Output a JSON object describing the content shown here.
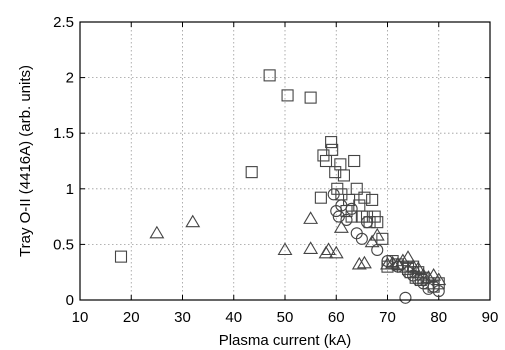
{
  "chart_data": {
    "type": "scatter",
    "title": "",
    "xlabel": "Plasma current (kA)",
    "ylabel": "Tray O-II (4416A) (arb. units)",
    "xlim": [
      10,
      90
    ],
    "ylim": [
      0,
      2.5
    ],
    "xticks": [
      "10",
      "20",
      "30",
      "40",
      "50",
      "60",
      "70",
      "80",
      "90"
    ],
    "yticks": [
      "0",
      "0.5",
      "1",
      "1.5",
      "2",
      "2.5"
    ],
    "grid": true,
    "legend": "none",
    "series": [
      {
        "marker": "square",
        "points": [
          [
            18,
            0.39
          ],
          [
            43.5,
            1.15
          ],
          [
            47,
            2.02
          ],
          [
            50.5,
            1.84
          ],
          [
            55,
            1.82
          ],
          [
            57,
            0.92
          ],
          [
            57.5,
            1.3
          ],
          [
            58,
            1.25
          ],
          [
            59,
            1.42
          ],
          [
            59.2,
            1.35
          ],
          [
            59.8,
            1.15
          ],
          [
            60.2,
            1.0
          ],
          [
            60.8,
            1.22
          ],
          [
            61,
            0.95
          ],
          [
            61.5,
            1.12
          ],
          [
            62,
            0.8
          ],
          [
            62.5,
            0.9
          ],
          [
            63,
            0.75
          ],
          [
            63.5,
            1.25
          ],
          [
            64,
            1.0
          ],
          [
            64.5,
            0.85
          ],
          [
            65,
            0.75
          ],
          [
            65.5,
            0.92
          ],
          [
            66,
            0.75
          ],
          [
            66.5,
            0.7
          ],
          [
            67,
            0.9
          ],
          [
            67.5,
            0.75
          ],
          [
            68,
            0.7
          ],
          [
            69,
            0.55
          ],
          [
            70,
            0.3
          ],
          [
            71,
            0.35
          ],
          [
            72,
            0.32
          ],
          [
            73,
            0.3
          ],
          [
            74,
            0.28
          ],
          [
            74.5,
            0.25
          ],
          [
            75,
            0.3
          ],
          [
            75.5,
            0.2
          ],
          [
            76,
            0.25
          ],
          [
            76.5,
            0.18
          ],
          [
            77,
            0.2
          ],
          [
            78,
            0.15
          ],
          [
            79,
            0.12
          ],
          [
            80,
            0.15
          ]
        ]
      },
      {
        "marker": "circle",
        "points": [
          [
            59.5,
            0.95
          ],
          [
            60,
            0.8
          ],
          [
            60.5,
            0.75
          ],
          [
            61,
            0.85
          ],
          [
            62,
            0.72
          ],
          [
            63,
            0.82
          ],
          [
            64,
            0.6
          ],
          [
            65,
            0.55
          ],
          [
            66,
            0.7
          ],
          [
            68,
            0.45
          ],
          [
            70,
            0.35
          ],
          [
            72,
            0.3
          ],
          [
            73.5,
            0.02
          ],
          [
            74,
            0.25
          ],
          [
            75,
            0.22
          ],
          [
            76,
            0.18
          ],
          [
            77,
            0.15
          ],
          [
            78,
            0.1
          ],
          [
            79,
            0.12
          ],
          [
            80,
            0.08
          ]
        ]
      },
      {
        "marker": "triangle",
        "points": [
          [
            25,
            0.6
          ],
          [
            32,
            0.7
          ],
          [
            50,
            0.45
          ],
          [
            55,
            0.73
          ],
          [
            55,
            0.46
          ],
          [
            58,
            0.42
          ],
          [
            58.5,
            0.45
          ],
          [
            60,
            0.42
          ],
          [
            61,
            0.65
          ],
          [
            64.5,
            0.32
          ],
          [
            65.5,
            0.33
          ],
          [
            67,
            0.52
          ],
          [
            68,
            0.58
          ],
          [
            70,
            0.32
          ],
          [
            71,
            0.33
          ],
          [
            72,
            0.32
          ],
          [
            73,
            0.35
          ],
          [
            74,
            0.38
          ],
          [
            75,
            0.3
          ],
          [
            76,
            0.28
          ],
          [
            77,
            0.22
          ],
          [
            78,
            0.2
          ],
          [
            79,
            0.22
          ],
          [
            80,
            0.18
          ]
        ]
      }
    ]
  }
}
